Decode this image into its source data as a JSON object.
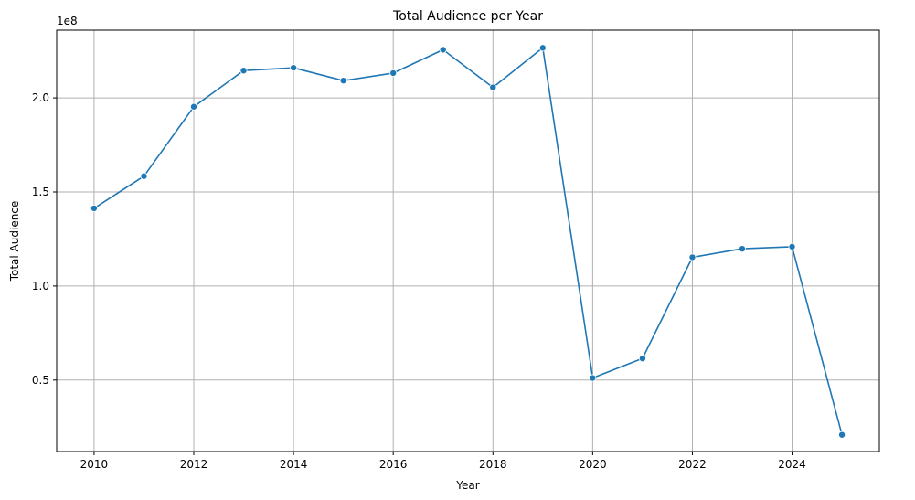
{
  "chart_data": {
    "type": "line",
    "title": "Total Audience per Year",
    "xlabel": "Year",
    "ylabel": "Total Audience",
    "y_offset_label": "1e8",
    "x": [
      2010,
      2011,
      2012,
      2013,
      2014,
      2015,
      2016,
      2017,
      2018,
      2019,
      2020,
      2021,
      2022,
      2023,
      2024,
      2025
    ],
    "series": [
      {
        "values": [
          1.413,
          1.584,
          1.953,
          2.145,
          2.16,
          2.092,
          2.132,
          2.256,
          2.056,
          2.266,
          0.511,
          0.615,
          1.153,
          1.198,
          1.209,
          0.209
        ],
        "color": "#1f77b4"
      }
    ],
    "xlim": [
      2009.25,
      2025.75
    ],
    "ylim": [
      0.12,
      2.36
    ],
    "x_ticks": [
      2010,
      2012,
      2014,
      2016,
      2018,
      2020,
      2022,
      2024
    ],
    "x_tick_labels": [
      "2010",
      "2012",
      "2014",
      "2016",
      "2018",
      "2020",
      "2022",
      "2024"
    ],
    "y_ticks": [
      0.5,
      1.0,
      1.5,
      2.0
    ],
    "y_tick_labels": [
      "0.5",
      "1.0",
      "1.5",
      "2.0"
    ],
    "grid": true,
    "colors": {
      "line": "#1f77b4",
      "grid": "#b0b0b0",
      "axis": "#000000"
    }
  }
}
